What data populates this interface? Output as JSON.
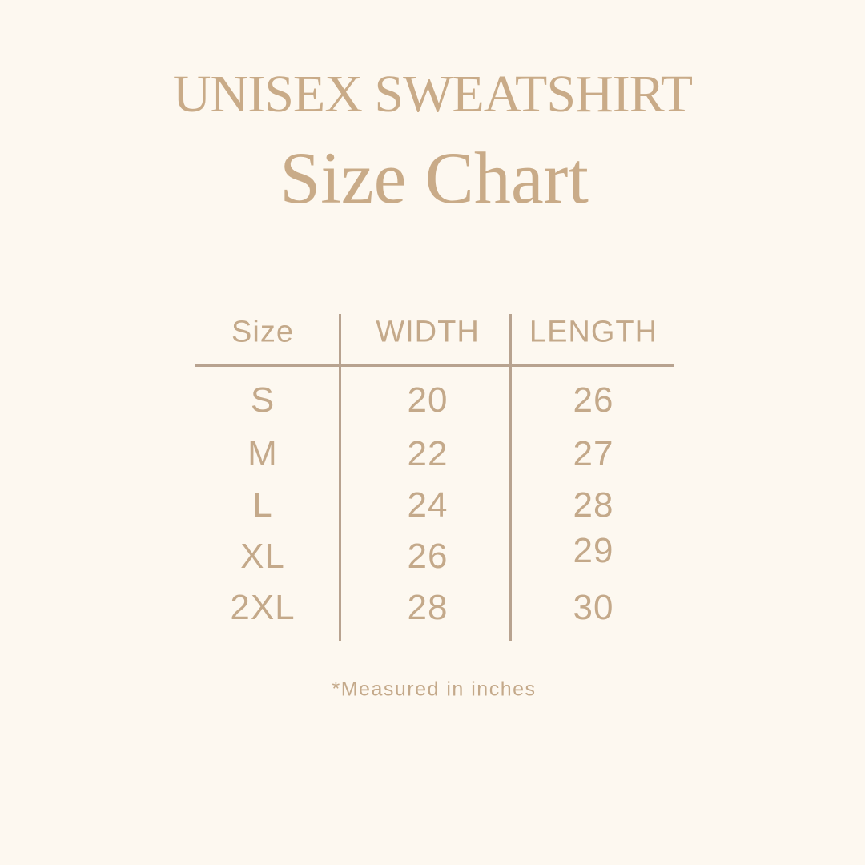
{
  "title": "UNISEX SWEATSHIRT",
  "subtitle": "Size Chart",
  "table": {
    "headers": [
      "Size",
      "WIDTH",
      "LENGTH"
    ],
    "rows": [
      [
        "S",
        "20",
        "26"
      ],
      [
        "M",
        "22",
        "27"
      ],
      [
        "L",
        "24",
        "28"
      ],
      [
        "XL",
        "26",
        "29"
      ],
      [
        "2XL",
        "28",
        "30"
      ]
    ]
  },
  "footnote": "*Measured in inches",
  "colors": {
    "background": "#fdf8f0",
    "text": "#c4a98a",
    "lines": "#b8a390"
  }
}
